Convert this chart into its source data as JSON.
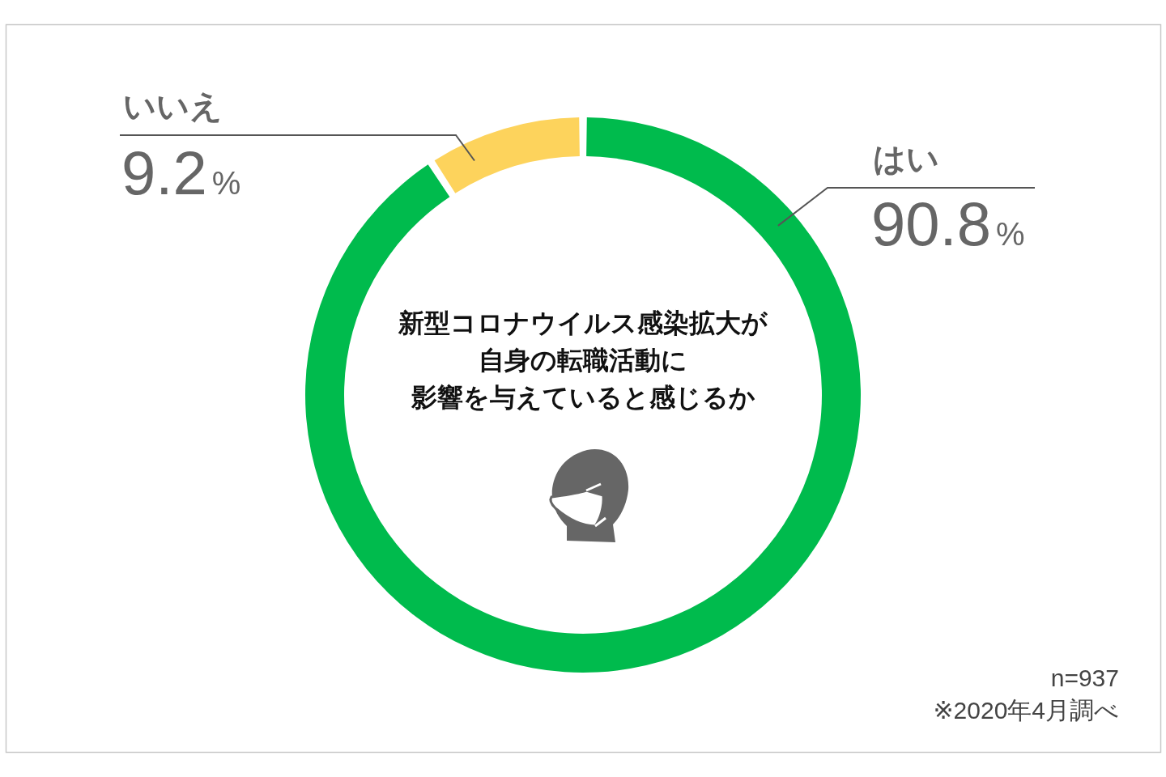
{
  "chart_data": {
    "type": "donut",
    "title": "新型コロナウイルス感染拡大が自身の転職活動に影響を与えていると感じるか",
    "categories": [
      "はい",
      "いいえ"
    ],
    "values": [
      90.8,
      9.2
    ],
    "colors": [
      "#00bb4d",
      "#fdd35c"
    ],
    "value_labels": [
      "90.8%",
      "9.2%"
    ],
    "annotations": [
      "n=937",
      "※2020年4月調べ"
    ]
  }
}
